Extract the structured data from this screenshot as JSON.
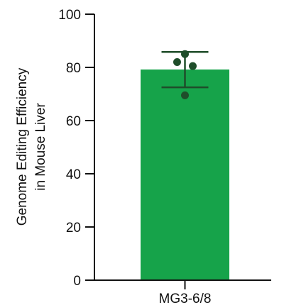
{
  "chart_data": {
    "type": "bar",
    "categories": [
      "MG3-6/8"
    ],
    "values": [
      79.2
    ],
    "error": {
      "lower": 72.5,
      "upper": 85.8
    },
    "points": [
      85.0,
      82.0,
      80.5,
      69.5
    ],
    "ylabel_lines": [
      "Genome Editing Efficiency",
      "in Mouse Liver"
    ],
    "xlabel": "",
    "ylim": [
      0,
      100
    ],
    "yticks": [
      0,
      20,
      40,
      60,
      80,
      100
    ],
    "grid": false,
    "colors": {
      "bar": "#16a34a",
      "errorbar": "#1f4d2a",
      "points": "#1f4d2a",
      "axis": "#111111"
    }
  }
}
